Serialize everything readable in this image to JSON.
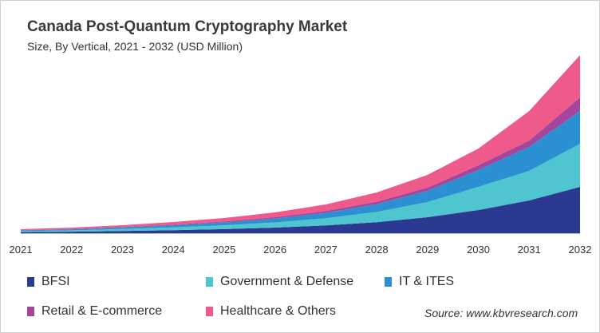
{
  "chart_data": {
    "type": "area",
    "stacked": true,
    "title": "Canada Post-Quantum Cryptography Market",
    "subtitle": "Size, By Vertical, 2021 - 2032 (USD Million)",
    "xlabel": "",
    "ylabel": "",
    "y_axis_shown": false,
    "grid": false,
    "legend_placement": "bottom",
    "categories": [
      "2021",
      "2022",
      "2023",
      "2024",
      "2025",
      "2026",
      "2027",
      "2028",
      "2029",
      "2030",
      "2031",
      "2032"
    ],
    "ylim": [
      0,
      230
    ],
    "series": [
      {
        "name": "BFSI",
        "color": "#2b3990",
        "values": [
          1.4,
          1.9,
          2.7,
          3.8,
          5.1,
          7.0,
          9.7,
          13.8,
          20,
          29,
          41,
          58
        ]
      },
      {
        "name": "Government & Defense",
        "color": "#4fc5cf",
        "values": [
          1.2,
          1.7,
          2.5,
          3.5,
          4.8,
          6.5,
          9.0,
          12.8,
          19,
          29,
          37,
          54
        ]
      },
      {
        "name": "IT & ITES",
        "color": "#2a90d2",
        "values": [
          1.0,
          1.3,
          1.9,
          2.6,
          3.6,
          4.9,
          6.8,
          9.7,
          14,
          21,
          30,
          41
        ]
      },
      {
        "name": "Retail & E-commerce",
        "color": "#a3469c",
        "values": [
          0.3,
          0.4,
          0.6,
          0.8,
          1.1,
          1.6,
          2.2,
          3.1,
          4,
          6,
          8,
          17
        ]
      },
      {
        "name": "Healthcare & Others",
        "color": "#ee5a8a",
        "values": [
          1.1,
          1.7,
          2.3,
          3.3,
          4.4,
          6.0,
          8.3,
          11.6,
          16,
          21,
          37,
          53
        ]
      }
    ],
    "source": "Source: www.kbvresearch.com"
  }
}
